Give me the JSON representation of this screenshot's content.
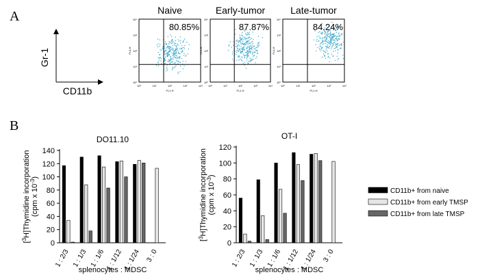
{
  "panel_a": {
    "label": "A",
    "y_axis": "Gr-1",
    "x_axis": "CD11b",
    "plots": [
      {
        "title": "Naive",
        "percent": "80.85%"
      },
      {
        "title": "Early-tumor",
        "percent": "87.87%"
      },
      {
        "title": "Late-tumor",
        "percent": "84.24%"
      }
    ],
    "plot_x_label": "FL1-H",
    "plot_y_label": "FL4-H",
    "plot_ticks": [
      "10⁰",
      "10¹",
      "10²",
      "10³",
      "10⁴"
    ]
  },
  "panel_b_label": "B",
  "chart_data": [
    {
      "type": "bar",
      "title": "DO11.10",
      "xlabel": "splenocytes : MDSC",
      "ylabel_parts": [
        "[",
        "3",
        "H]Thymidine incorporation",
        "(cpm x 10",
        "-3",
        ")"
      ],
      "categories": [
        "1 : 2/3",
        "1 : 1/3",
        "1 : 1/6",
        "1 : 1/12",
        "1 : 1/24",
        "3 : 0"
      ],
      "series": [
        {
          "color": "#000000",
          "values": [
            117,
            130,
            132,
            123,
            119,
            null
          ]
        },
        {
          "color": "#e6e6e6",
          "values": [
            34,
            88,
            115,
            124,
            125,
            113
          ]
        },
        {
          "color": "#666666",
          "values": [
            1,
            18,
            83,
            100,
            121,
            null
          ]
        }
      ],
      "ylim": [
        0,
        140
      ],
      "yticks": [
        0,
        20,
        40,
        60,
        80,
        100,
        120,
        140
      ]
    },
    {
      "type": "bar",
      "title": "OT-I",
      "xlabel": "splenocytes : MDSC",
      "ylabel_parts": [
        "[",
        "3",
        "H]Thymidine incorporation",
        "(cpm x 10",
        "-3",
        ")"
      ],
      "categories": [
        "1 : 2/3",
        "1 : 1/3",
        "1 : 1/6",
        "1 : 1/12",
        "1 : 1/24",
        "3 : 0"
      ],
      "series": [
        {
          "name": "CD11b+ from naive",
          "color": "#000000",
          "values": [
            56,
            79,
            100,
            113,
            111,
            null
          ]
        },
        {
          "name": "CD11b+ from early TMSP",
          "color": "#e6e6e6",
          "values": [
            11,
            34,
            67,
            98,
            112,
            102
          ]
        },
        {
          "name": "CD11b+ from late TMSP",
          "color": "#666666",
          "values": [
            2,
            4,
            37,
            78,
            103,
            null
          ]
        }
      ],
      "ylim": [
        0,
        120
      ],
      "yticks": [
        0,
        20,
        40,
        60,
        80,
        100,
        120
      ]
    }
  ]
}
